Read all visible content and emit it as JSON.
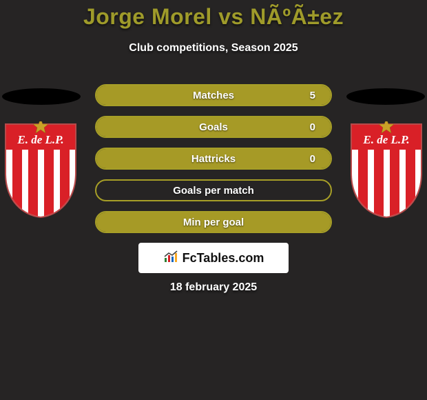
{
  "title": "Jorge Morel vs NÃºÃ±ez",
  "subtitle": "Club competitions, Season 2025",
  "date": "18 february 2025",
  "site": {
    "label": "FcTables.com"
  },
  "colors": {
    "background": "#262424",
    "title": "#9f9b2a",
    "text": "#ffffff",
    "bar_border": "#a79f27",
    "bar_fill": "#a69a26",
    "logo_bg": "#ffffff",
    "logo_text": "#111111",
    "crest_red": "#d92027",
    "crest_white": "#ffffff",
    "crest_gold": "#c9a227",
    "crest_outline": "#b84a4a"
  },
  "bars": [
    {
      "label": "Matches",
      "left": "",
      "right": "5",
      "fill_pct": 100
    },
    {
      "label": "Goals",
      "left": "",
      "right": "0",
      "fill_pct": 100
    },
    {
      "label": "Hattricks",
      "left": "",
      "right": "0",
      "fill_pct": 100
    },
    {
      "label": "Goals per match",
      "left": "",
      "right": "",
      "fill_pct": 0
    },
    {
      "label": "Min per goal",
      "left": "",
      "right": "",
      "fill_pct": 100
    }
  ],
  "crest": {
    "text": "E. de L.P."
  }
}
